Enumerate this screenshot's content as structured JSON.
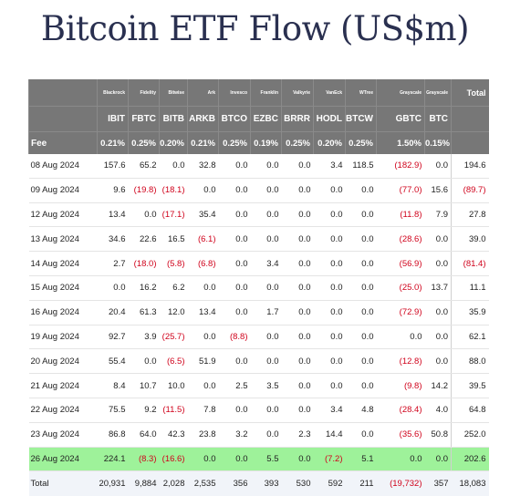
{
  "title": "Bitcoin ETF Flow (US$m)",
  "chart_data": {
    "type": "table",
    "title": "Bitcoin ETF Flow (US$m)",
    "issuers": [
      "Blackrock",
      "Fidelity",
      "Bitwise",
      "Ark",
      "Invesco",
      "Franklin",
      "Valkyrie",
      "VanEck",
      "WTree",
      "Grayscale",
      "Grayscale"
    ],
    "total_header": "Total",
    "tickers": [
      "IBIT",
      "FBTC",
      "BITB",
      "ARKB",
      "BTCO",
      "EZBC",
      "BRRR",
      "HODL",
      "BTCW",
      "GBTC",
      "BTC"
    ],
    "fee_label": "Fee",
    "fees": [
      "0.21%",
      "0.25%",
      "0.20%",
      "0.21%",
      "0.25%",
      "0.19%",
      "0.25%",
      "0.20%",
      "0.25%",
      "1.50%",
      "0.15%"
    ],
    "rows": [
      {
        "date": "08 Aug 2024",
        "values": [
          157.6,
          65.2,
          0.0,
          32.8,
          0.0,
          0.0,
          0.0,
          3.4,
          118.5,
          -182.9,
          0.0
        ],
        "total": 194.6
      },
      {
        "date": "09 Aug 2024",
        "values": [
          9.6,
          -19.8,
          -18.1,
          0.0,
          0.0,
          0.0,
          0.0,
          0.0,
          0.0,
          -77.0,
          15.6
        ],
        "total": -89.7
      },
      {
        "date": "12 Aug 2024",
        "values": [
          13.4,
          0.0,
          -17.1,
          35.4,
          0.0,
          0.0,
          0.0,
          0.0,
          0.0,
          -11.8,
          7.9
        ],
        "total": 27.8
      },
      {
        "date": "13 Aug 2024",
        "values": [
          34.6,
          22.6,
          16.5,
          -6.1,
          0.0,
          0.0,
          0.0,
          0.0,
          0.0,
          -28.6,
          0.0
        ],
        "total": 39.0
      },
      {
        "date": "14 Aug 2024",
        "values": [
          2.7,
          -18.0,
          -5.8,
          -6.8,
          0.0,
          3.4,
          0.0,
          0.0,
          0.0,
          -56.9,
          0.0
        ],
        "total": -81.4
      },
      {
        "date": "15 Aug 2024",
        "values": [
          0.0,
          16.2,
          6.2,
          0.0,
          0.0,
          0.0,
          0.0,
          0.0,
          0.0,
          -25.0,
          13.7
        ],
        "total": 11.1
      },
      {
        "date": "16 Aug 2024",
        "values": [
          20.4,
          61.3,
          12.0,
          13.4,
          0.0,
          1.7,
          0.0,
          0.0,
          0.0,
          -72.9,
          0.0
        ],
        "total": 35.9
      },
      {
        "date": "19 Aug 2024",
        "values": [
          92.7,
          3.9,
          -25.7,
          0.0,
          -8.8,
          0.0,
          0.0,
          0.0,
          0.0,
          0.0,
          0.0
        ],
        "total": 62.1
      },
      {
        "date": "20 Aug 2024",
        "values": [
          55.4,
          0.0,
          -6.5,
          51.9,
          0.0,
          0.0,
          0.0,
          0.0,
          0.0,
          -12.8,
          0.0
        ],
        "total": 88.0
      },
      {
        "date": "21 Aug 2024",
        "values": [
          8.4,
          10.7,
          10.0,
          0.0,
          2.5,
          3.5,
          0.0,
          0.0,
          0.0,
          -9.8,
          14.2
        ],
        "total": 39.5
      },
      {
        "date": "22 Aug 2024",
        "values": [
          75.5,
          9.2,
          -11.5,
          7.8,
          0.0,
          0.0,
          0.0,
          3.4,
          4.8,
          -28.4,
          4.0
        ],
        "total": 64.8
      },
      {
        "date": "23 Aug 2024",
        "values": [
          86.8,
          64.0,
          42.3,
          23.8,
          3.2,
          0.0,
          2.3,
          14.4,
          0.0,
          -35.6,
          50.8
        ],
        "total": 252.0
      },
      {
        "date": "26 Aug 2024",
        "values": [
          224.1,
          -8.3,
          -16.6,
          0.0,
          0.0,
          5.5,
          0.0,
          -7.2,
          5.1,
          0.0,
          0.0
        ],
        "total": 202.6,
        "highlight": true
      }
    ],
    "totals_label": "Total",
    "totals": [
      "20,931",
      "9,884",
      "2,028",
      "2,535",
      "356",
      "393",
      "530",
      "592",
      "211",
      "(19,732)",
      "357",
      "18,083"
    ],
    "colors": {
      "header_bg": "#777777",
      "negative": "#d0021b",
      "highlight": "#9ef29a",
      "totals_bg": "#f1f4f9",
      "title": "#2a3050"
    }
  }
}
